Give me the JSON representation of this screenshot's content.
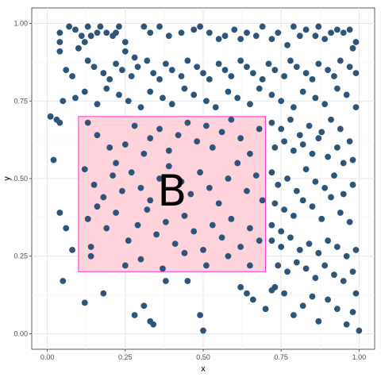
{
  "chart_data": {
    "type": "scatter",
    "title": "",
    "xlabel": "x",
    "ylabel": "y",
    "xlim": [
      -0.05,
      1.05
    ],
    "ylim": [
      -0.05,
      1.05
    ],
    "xticks": [
      0.0,
      0.25,
      0.5,
      0.75,
      1.0
    ],
    "yticks": [
      0.0,
      0.25,
      0.5,
      0.75,
      1.0
    ],
    "xtick_labels": [
      "0.00",
      "0.25",
      "0.50",
      "0.75",
      "1.00"
    ],
    "ytick_labels": [
      "0.00",
      "0.25",
      "0.50",
      "0.75",
      "1.00"
    ],
    "grid": true,
    "point_color": "#2d5479",
    "highlight_rect": {
      "xmin": 0.1,
      "xmax": 0.7,
      "ymin": 0.2,
      "ymax": 0.7,
      "fill": "#ffd3dc",
      "stroke": "#ff33cc"
    },
    "annotation": {
      "text": "B",
      "x": 0.4,
      "y": 0.45
    },
    "points": [
      [
        0.04,
        0.97
      ],
      [
        0.04,
        0.94
      ],
      [
        0.04,
        0.91
      ],
      [
        0.07,
        0.99
      ],
      [
        0.09,
        0.98
      ],
      [
        0.11,
        0.96
      ],
      [
        0.13,
        0.99
      ],
      [
        0.12,
        0.94
      ],
      [
        0.1,
        0.92
      ],
      [
        0.14,
        0.96
      ],
      [
        0.16,
        0.97
      ],
      [
        0.17,
        0.99
      ],
      [
        0.19,
        0.97
      ],
      [
        0.21,
        0.96
      ],
      [
        0.22,
        0.97
      ],
      [
        0.23,
        0.99
      ],
      [
        0.25,
        0.94
      ],
      [
        0.25,
        0.91
      ],
      [
        0.28,
        0.89
      ],
      [
        0.31,
        0.99
      ],
      [
        0.33,
        0.97
      ],
      [
        0.36,
        0.99
      ],
      [
        0.39,
        0.96
      ],
      [
        0.43,
        0.97
      ],
      [
        0.47,
        0.98
      ],
      [
        0.49,
        0.99
      ],
      [
        0.52,
        0.97
      ],
      [
        0.55,
        0.95
      ],
      [
        0.57,
        0.96
      ],
      [
        0.6,
        0.98
      ],
      [
        0.62,
        0.95
      ],
      [
        0.64,
        0.97
      ],
      [
        0.67,
        0.96
      ],
      [
        0.69,
        0.99
      ],
      [
        0.72,
        0.95
      ],
      [
        0.74,
        0.97
      ],
      [
        0.77,
        0.93
      ],
      [
        0.79,
        0.99
      ],
      [
        0.81,
        0.96
      ],
      [
        0.83,
        0.98
      ],
      [
        0.86,
        0.96
      ],
      [
        0.87,
        0.99
      ],
      [
        0.89,
        0.95
      ],
      [
        0.91,
        0.97
      ],
      [
        0.93,
        0.98
      ],
      [
        0.95,
        0.97
      ],
      [
        0.97,
        0.98
      ],
      [
        0.99,
        0.94
      ],
      [
        0.98,
        0.92
      ],
      [
        0.06,
        0.85
      ],
      [
        0.08,
        0.83
      ],
      [
        0.13,
        0.88
      ],
      [
        0.15,
        0.86
      ],
      [
        0.18,
        0.84
      ],
      [
        0.2,
        0.82
      ],
      [
        0.22,
        0.87
      ],
      [
        0.24,
        0.85
      ],
      [
        0.27,
        0.83
      ],
      [
        0.29,
        0.86
      ],
      [
        0.32,
        0.88
      ],
      [
        0.34,
        0.84
      ],
      [
        0.36,
        0.82
      ],
      [
        0.38,
        0.87
      ],
      [
        0.4,
        0.85
      ],
      [
        0.43,
        0.83
      ],
      [
        0.45,
        0.88
      ],
      [
        0.48,
        0.86
      ],
      [
        0.5,
        0.84
      ],
      [
        0.52,
        0.82
      ],
      [
        0.55,
        0.87
      ],
      [
        0.57,
        0.85
      ],
      [
        0.59,
        0.83
      ],
      [
        0.62,
        0.88
      ],
      [
        0.64,
        0.86
      ],
      [
        0.66,
        0.84
      ],
      [
        0.69,
        0.82
      ],
      [
        0.71,
        0.87
      ],
      [
        0.73,
        0.85
      ],
      [
        0.76,
        0.83
      ],
      [
        0.78,
        0.88
      ],
      [
        0.8,
        0.86
      ],
      [
        0.83,
        0.84
      ],
      [
        0.85,
        0.82
      ],
      [
        0.87,
        0.87
      ],
      [
        0.9,
        0.85
      ],
      [
        0.92,
        0.83
      ],
      [
        0.94,
        0.88
      ],
      [
        0.97,
        0.86
      ],
      [
        0.99,
        0.84
      ],
      [
        0.05,
        0.75
      ],
      [
        0.09,
        0.76
      ],
      [
        0.12,
        0.78
      ],
      [
        0.16,
        0.74
      ],
      [
        0.19,
        0.79
      ],
      [
        0.23,
        0.77
      ],
      [
        0.26,
        0.75
      ],
      [
        0.3,
        0.73
      ],
      [
        0.33,
        0.78
      ],
      [
        0.37,
        0.76
      ],
      [
        0.4,
        0.74
      ],
      [
        0.44,
        0.79
      ],
      [
        0.47,
        0.77
      ],
      [
        0.51,
        0.75
      ],
      [
        0.54,
        0.73
      ],
      [
        0.58,
        0.78
      ],
      [
        0.61,
        0.76
      ],
      [
        0.65,
        0.74
      ],
      [
        0.68,
        0.79
      ],
      [
        0.72,
        0.77
      ],
      [
        0.75,
        0.75
      ],
      [
        0.79,
        0.73
      ],
      [
        0.82,
        0.78
      ],
      [
        0.86,
        0.76
      ],
      [
        0.89,
        0.74
      ],
      [
        0.93,
        0.79
      ],
      [
        0.96,
        0.77
      ],
      [
        0.99,
        0.73
      ],
      [
        0.01,
        0.7
      ],
      [
        0.03,
        0.69
      ],
      [
        0.04,
        0.68
      ],
      [
        0.72,
        0.68
      ],
      [
        0.75,
        0.66
      ],
      [
        0.78,
        0.69
      ],
      [
        0.81,
        0.64
      ],
      [
        0.84,
        0.67
      ],
      [
        0.88,
        0.65
      ],
      [
        0.91,
        0.69
      ],
      [
        0.94,
        0.66
      ],
      [
        0.97,
        0.62
      ],
      [
        0.73,
        0.6
      ],
      [
        0.76,
        0.62
      ],
      [
        0.79,
        0.59
      ],
      [
        0.82,
        0.61
      ],
      [
        0.85,
        0.58
      ],
      [
        0.87,
        0.63
      ],
      [
        0.9,
        0.57
      ],
      [
        0.93,
        0.6
      ],
      [
        0.95,
        0.55
      ],
      [
        0.98,
        0.56
      ],
      [
        0.02,
        0.56
      ],
      [
        0.72,
        0.52
      ],
      [
        0.74,
        0.48
      ],
      [
        0.77,
        0.5
      ],
      [
        0.8,
        0.46
      ],
      [
        0.83,
        0.53
      ],
      [
        0.86,
        0.49
      ],
      [
        0.89,
        0.47
      ],
      [
        0.92,
        0.51
      ],
      [
        0.95,
        0.45
      ],
      [
        0.98,
        0.48
      ],
      [
        0.73,
        0.42
      ],
      [
        0.76,
        0.4
      ],
      [
        0.79,
        0.38
      ],
      [
        0.82,
        0.43
      ],
      [
        0.85,
        0.41
      ],
      [
        0.88,
        0.37
      ],
      [
        0.91,
        0.44
      ],
      [
        0.94,
        0.39
      ],
      [
        0.97,
        0.36
      ],
      [
        0.72,
        0.35
      ],
      [
        0.75,
        0.33
      ],
      [
        0.04,
        0.39
      ],
      [
        0.06,
        0.34
      ],
      [
        0.08,
        0.27
      ],
      [
        0.05,
        0.17
      ],
      [
        0.72,
        0.3
      ],
      [
        0.75,
        0.28
      ],
      [
        0.78,
        0.31
      ],
      [
        0.81,
        0.27
      ],
      [
        0.84,
        0.29
      ],
      [
        0.87,
        0.26
      ],
      [
        0.9,
        0.3
      ],
      [
        0.93,
        0.28
      ],
      [
        0.96,
        0.25
      ],
      [
        0.99,
        0.27
      ],
      [
        0.74,
        0.22
      ],
      [
        0.77,
        0.2
      ],
      [
        0.8,
        0.23
      ],
      [
        0.83,
        0.21
      ],
      [
        0.86,
        0.18
      ],
      [
        0.89,
        0.22
      ],
      [
        0.92,
        0.19
      ],
      [
        0.95,
        0.17
      ],
      [
        0.98,
        0.2
      ],
      [
        0.73,
        0.15
      ],
      [
        0.76,
        0.13
      ],
      [
        0.12,
        0.1
      ],
      [
        0.18,
        0.13
      ],
      [
        0.28,
        0.06
      ],
      [
        0.31,
        0.09
      ],
      [
        0.33,
        0.04
      ],
      [
        0.34,
        0.03
      ],
      [
        0.38,
        0.17
      ],
      [
        0.45,
        0.17
      ],
      [
        0.49,
        0.06
      ],
      [
        0.5,
        0.01
      ],
      [
        0.62,
        0.15
      ],
      [
        0.64,
        0.13
      ],
      [
        0.66,
        0.11
      ],
      [
        0.7,
        0.08
      ],
      [
        0.72,
        0.14
      ],
      [
        0.79,
        0.06
      ],
      [
        0.82,
        0.09
      ],
      [
        0.85,
        0.12
      ],
      [
        0.87,
        0.04
      ],
      [
        0.9,
        0.11
      ],
      [
        0.93,
        0.08
      ],
      [
        0.96,
        0.03
      ],
      [
        0.98,
        0.07
      ],
      [
        1.0,
        0.01
      ],
      [
        0.99,
        0.13
      ],
      [
        0.13,
        0.68
      ],
      [
        0.16,
        0.64
      ],
      [
        0.2,
        0.6
      ],
      [
        0.22,
        0.55
      ],
      [
        0.25,
        0.61
      ],
      [
        0.28,
        0.67
      ],
      [
        0.31,
        0.58
      ],
      [
        0.33,
        0.63
      ],
      [
        0.36,
        0.66
      ],
      [
        0.39,
        0.59
      ],
      [
        0.42,
        0.64
      ],
      [
        0.45,
        0.68
      ],
      [
        0.48,
        0.62
      ],
      [
        0.51,
        0.67
      ],
      [
        0.53,
        0.6
      ],
      [
        0.56,
        0.65
      ],
      [
        0.59,
        0.69
      ],
      [
        0.62,
        0.63
      ],
      [
        0.65,
        0.58
      ],
      [
        0.68,
        0.66
      ],
      [
        0.12,
        0.53
      ],
      [
        0.15,
        0.48
      ],
      [
        0.18,
        0.44
      ],
      [
        0.21,
        0.51
      ],
      [
        0.24,
        0.46
      ],
      [
        0.27,
        0.52
      ],
      [
        0.3,
        0.47
      ],
      [
        0.33,
        0.43
      ],
      [
        0.36,
        0.5
      ],
      [
        0.39,
        0.54
      ],
      [
        0.43,
        0.49
      ],
      [
        0.46,
        0.45
      ],
      [
        0.49,
        0.52
      ],
      [
        0.52,
        0.47
      ],
      [
        0.55,
        0.42
      ],
      [
        0.58,
        0.5
      ],
      [
        0.61,
        0.55
      ],
      [
        0.64,
        0.46
      ],
      [
        0.67,
        0.51
      ],
      [
        0.69,
        0.43
      ],
      [
        0.13,
        0.37
      ],
      [
        0.16,
        0.41
      ],
      [
        0.19,
        0.34
      ],
      [
        0.22,
        0.39
      ],
      [
        0.26,
        0.3
      ],
      [
        0.29,
        0.35
      ],
      [
        0.32,
        0.4
      ],
      [
        0.35,
        0.32
      ],
      [
        0.38,
        0.36
      ],
      [
        0.41,
        0.29
      ],
      [
        0.44,
        0.38
      ],
      [
        0.47,
        0.33
      ],
      [
        0.5,
        0.27
      ],
      [
        0.53,
        0.35
      ],
      [
        0.56,
        0.31
      ],
      [
        0.59,
        0.37
      ],
      [
        0.62,
        0.28
      ],
      [
        0.65,
        0.34
      ],
      [
        0.68,
        0.3
      ],
      [
        0.14,
        0.28
      ],
      [
        0.14,
        0.25
      ],
      [
        0.25,
        0.22
      ],
      [
        0.3,
        0.24
      ],
      [
        0.37,
        0.21
      ],
      [
        0.44,
        0.26
      ],
      [
        0.51,
        0.22
      ],
      [
        0.58,
        0.25
      ],
      [
        0.65,
        0.22
      ]
    ]
  }
}
